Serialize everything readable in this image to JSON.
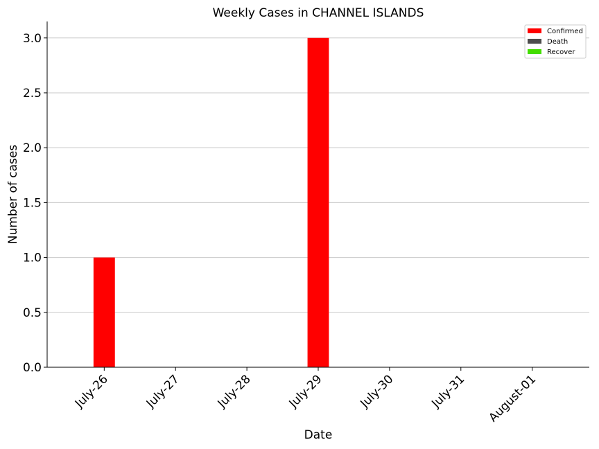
{
  "chart_data": {
    "type": "bar",
    "title": "Weekly Cases in CHANNEL ISLANDS",
    "xlabel": "Date",
    "ylabel": "Number of cases",
    "categories": [
      "July-26",
      "July-27",
      "July-28",
      "July-29",
      "July-30",
      "July-31",
      "August-01"
    ],
    "series": [
      {
        "name": "Confirmed",
        "color": "#ff0000",
        "values": [
          1,
          0,
          0,
          3,
          0,
          0,
          0
        ]
      },
      {
        "name": "Death",
        "color": "#4d4d4d",
        "values": [
          0,
          0,
          0,
          0,
          0,
          0,
          0
        ]
      },
      {
        "name": "Recover",
        "color": "#44dd00",
        "values": [
          0,
          0,
          0,
          0,
          0,
          0,
          0
        ]
      }
    ],
    "ylim": [
      0,
      3.15
    ],
    "yticks": [
      "0.0",
      "0.5",
      "1.0",
      "1.5",
      "2.0",
      "2.5",
      "3.0"
    ],
    "grid": "horizontal",
    "legend_position": "top-right"
  }
}
